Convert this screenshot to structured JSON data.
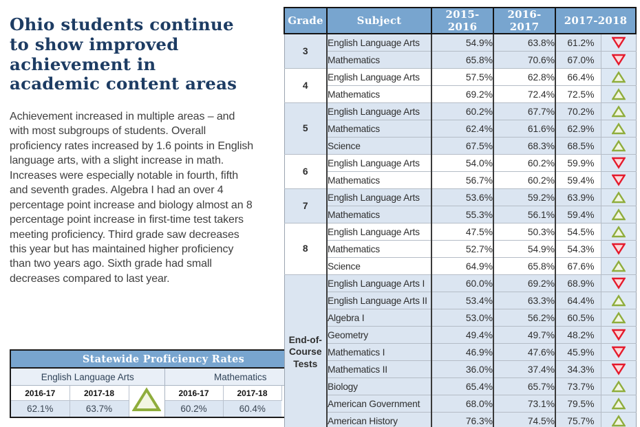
{
  "left": {
    "title": "Ohio students continue to show improved achievement in academic content areas",
    "paragraph": "Achievement increased in multiple areas – and with most subgroups of students. Overall proficiency rates increased by 1.6 points in English language arts, with a slight increase in math. Increases were especially notable in fourth, fifth and seventh grades. Algebra I had an over 4 percentage point increase and biology almost an 8 percentage point increase in first-time test takers meeting proficiency. Third grade saw decreases this year but has maintained higher proficiency than two years ago. Sixth grade had small decreases compared to last year."
  },
  "statewide_table": {
    "title": "Statewide Proficiency Rates",
    "groups": [
      {
        "label": "English Language Arts",
        "year1": "2016-17",
        "year2": "2017-18",
        "val1": "62.1%",
        "val2": "63.7%",
        "trend": "up"
      },
      {
        "label": "Mathematics",
        "year1": "2016-17",
        "year2": "2017-18",
        "val1": "60.2%",
        "val2": "60.4%",
        "trend": "up"
      }
    ]
  },
  "main_table": {
    "headers": [
      "Grade",
      "Subject",
      "2015-2016",
      "2016-2017",
      "2017-2018"
    ],
    "groups": [
      {
        "grade": "3",
        "shaded": true,
        "rows": [
          {
            "subject": "English Language Arts",
            "values": [
              "54.9%",
              "63.8%",
              "61.2%"
            ],
            "trend": "down"
          },
          {
            "subject": "Mathematics",
            "values": [
              "65.8%",
              "70.6%",
              "67.0%"
            ],
            "trend": "down"
          }
        ]
      },
      {
        "grade": "4",
        "shaded": false,
        "rows": [
          {
            "subject": "English Language Arts",
            "values": [
              "57.5%",
              "62.8%",
              "66.4%"
            ],
            "trend": "up"
          },
          {
            "subject": "Mathematics",
            "values": [
              "69.2%",
              "72.4%",
              "72.5%"
            ],
            "trend": "up"
          }
        ]
      },
      {
        "grade": "5",
        "shaded": true,
        "rows": [
          {
            "subject": "English Language Arts",
            "values": [
              "60.2%",
              "67.7%",
              "70.2%"
            ],
            "trend": "up"
          },
          {
            "subject": "Mathematics",
            "values": [
              "62.4%",
              "61.6%",
              "62.9%"
            ],
            "trend": "up"
          },
          {
            "subject": "Science",
            "values": [
              "67.5%",
              "68.3%",
              "68.5%"
            ],
            "trend": "up"
          }
        ]
      },
      {
        "grade": "6",
        "shaded": false,
        "rows": [
          {
            "subject": "English Language Arts",
            "values": [
              "54.0%",
              "60.2%",
              "59.9%"
            ],
            "trend": "down"
          },
          {
            "subject": "Mathematics",
            "values": [
              "56.7%",
              "60.2%",
              "59.4%"
            ],
            "trend": "down"
          }
        ]
      },
      {
        "grade": "7",
        "shaded": true,
        "rows": [
          {
            "subject": "English Language Arts",
            "values": [
              "53.6%",
              "59.2%",
              "63.9%"
            ],
            "trend": "up"
          },
          {
            "subject": "Mathematics",
            "values": [
              "55.3%",
              "56.1%",
              "59.4%"
            ],
            "trend": "up"
          }
        ]
      },
      {
        "grade": "8",
        "shaded": false,
        "rows": [
          {
            "subject": "English Language Arts",
            "values": [
              "47.5%",
              "50.3%",
              "54.5%"
            ],
            "trend": "up"
          },
          {
            "subject": "Mathematics",
            "values": [
              "52.7%",
              "54.9%",
              "54.3%"
            ],
            "trend": "down"
          },
          {
            "subject": "Science",
            "values": [
              "64.9%",
              "65.8%",
              "67.6%"
            ],
            "trend": "up"
          }
        ]
      },
      {
        "grade": "End-of-Course Tests",
        "shaded": true,
        "rows": [
          {
            "subject": "English Language Arts I",
            "values": [
              "60.0%",
              "69.2%",
              "68.9%"
            ],
            "trend": "down"
          },
          {
            "subject": "English Language Arts II",
            "values": [
              "53.4%",
              "63.3%",
              "64.4%"
            ],
            "trend": "up"
          },
          {
            "subject": "Algebra I",
            "values": [
              "53.0%",
              "56.2%",
              "60.5%"
            ],
            "trend": "up"
          },
          {
            "subject": "Geometry",
            "values": [
              "49.4%",
              "49.7%",
              "48.2%"
            ],
            "trend": "down"
          },
          {
            "subject": "Mathematics I",
            "values": [
              "46.9%",
              "47.6%",
              "45.9%"
            ],
            "trend": "down"
          },
          {
            "subject": "Mathematics II",
            "values": [
              "36.0%",
              "37.4%",
              "34.3%"
            ],
            "trend": "down"
          },
          {
            "subject": "Biology",
            "values": [
              "65.4%",
              "65.7%",
              "73.7%"
            ],
            "trend": "up"
          },
          {
            "subject": "American Government",
            "values": [
              "68.0%",
              "73.1%",
              "79.5%"
            ],
            "trend": "up"
          },
          {
            "subject": "American History",
            "values": [
              "76.3%",
              "74.5%",
              "75.7%"
            ],
            "trend": "up"
          }
        ]
      }
    ]
  },
  "colors": {
    "header_blue": "#78a5cf",
    "row_shaded": "#dbe5f1",
    "up_stroke": "#8fad3c",
    "up_fill": "#f3f6e2",
    "down_stroke": "#e51a2c",
    "down_fill": "#fbdadb",
    "title_navy": "#1d3c63"
  }
}
